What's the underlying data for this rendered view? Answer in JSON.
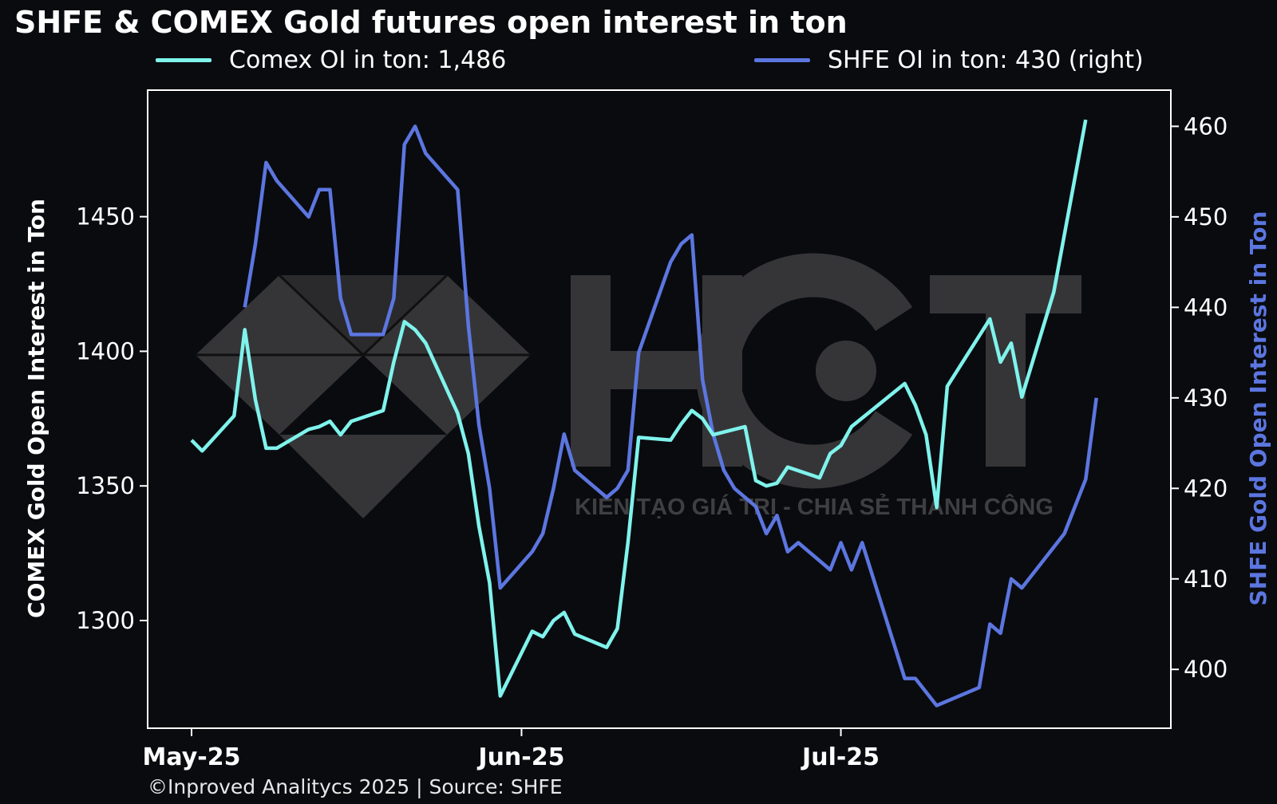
{
  "chart_data": {
    "type": "line",
    "title": "SHFE & COMEX Gold futures open interest in ton",
    "legend": {
      "placement": "top"
    },
    "x_ticks": [
      "May-25",
      "Jun-25",
      "Jul-25"
    ],
    "x_range": [
      "2025-05-01",
      "2025-07-29"
    ],
    "y_left": {
      "label": "COMEX Gold Open Interest in Ton",
      "range": [
        1260,
        1497
      ],
      "ticks": [
        1300,
        1350,
        1400,
        1450
      ]
    },
    "y_right": {
      "label": "SHFE Gold Open Interest in Ton",
      "range": [
        393.5,
        464
      ],
      "ticks": [
        400,
        410,
        420,
        430,
        440,
        450,
        460
      ]
    },
    "grid": false,
    "series": [
      {
        "name": "Comex OI in ton: 1,486",
        "axis": "left",
        "color": "#7ff3ec",
        "points": [
          [
            "2025-05-01",
            1367
          ],
          [
            "2025-05-02",
            1363
          ],
          [
            "2025-05-05",
            1376
          ],
          [
            "2025-05-06",
            1408
          ],
          [
            "2025-05-07",
            1382
          ],
          [
            "2025-05-08",
            1364
          ],
          [
            "2025-05-09",
            1364
          ],
          [
            "2025-05-12",
            1371
          ],
          [
            "2025-05-13",
            1372
          ],
          [
            "2025-05-14",
            1374
          ],
          [
            "2025-05-15",
            1369
          ],
          [
            "2025-05-16",
            1374
          ],
          [
            "2025-05-19",
            1378
          ],
          [
            "2025-05-20",
            1396
          ],
          [
            "2025-05-21",
            1411
          ],
          [
            "2025-05-22",
            1408
          ],
          [
            "2025-05-23",
            1403
          ],
          [
            "2025-05-26",
            1377
          ],
          [
            "2025-05-27",
            1362
          ],
          [
            "2025-05-28",
            1335
          ],
          [
            "2025-05-29",
            1314
          ],
          [
            "2025-05-30",
            1272
          ],
          [
            "2025-06-02",
            1296
          ],
          [
            "2025-06-03",
            1294
          ],
          [
            "2025-06-04",
            1300
          ],
          [
            "2025-06-05",
            1303
          ],
          [
            "2025-06-06",
            1295
          ],
          [
            "2025-06-09",
            1290
          ],
          [
            "2025-06-10",
            1297
          ],
          [
            "2025-06-11",
            1329
          ],
          [
            "2025-06-12",
            1368
          ],
          [
            "2025-06-15",
            1367
          ],
          [
            "2025-06-16",
            1373
          ],
          [
            "2025-06-17",
            1378
          ],
          [
            "2025-06-18",
            1375
          ],
          [
            "2025-06-19",
            1369
          ],
          [
            "2025-06-22",
            1372
          ],
          [
            "2025-06-23",
            1352
          ],
          [
            "2025-06-24",
            1350
          ],
          [
            "2025-06-25",
            1351
          ],
          [
            "2025-06-26",
            1357
          ],
          [
            "2025-06-29",
            1353
          ],
          [
            "2025-06-30",
            1362
          ],
          [
            "2025-07-01",
            1365
          ],
          [
            "2025-07-02",
            1372
          ],
          [
            "2025-07-07",
            1388
          ],
          [
            "2025-07-08",
            1380
          ],
          [
            "2025-07-09",
            1369
          ],
          [
            "2025-07-10",
            1342
          ],
          [
            "2025-07-11",
            1387
          ],
          [
            "2025-07-15",
            1412
          ],
          [
            "2025-07-16",
            1396
          ],
          [
            "2025-07-17",
            1403
          ],
          [
            "2025-07-18",
            1383
          ],
          [
            "2025-07-21",
            1422
          ],
          [
            "2025-07-24",
            1486
          ]
        ]
      },
      {
        "name": "SHFE OI in ton: 430 (right)",
        "axis": "right",
        "color": "#5c76e0",
        "points": [
          [
            "2025-05-06",
            440
          ],
          [
            "2025-05-07",
            447
          ],
          [
            "2025-05-08",
            456
          ],
          [
            "2025-05-09",
            454
          ],
          [
            "2025-05-12",
            450
          ],
          [
            "2025-05-13",
            453
          ],
          [
            "2025-05-14",
            453
          ],
          [
            "2025-05-15",
            441
          ],
          [
            "2025-05-16",
            437
          ],
          [
            "2025-05-19",
            437
          ],
          [
            "2025-05-20",
            441
          ],
          [
            "2025-05-21",
            458
          ],
          [
            "2025-05-22",
            460
          ],
          [
            "2025-05-23",
            457
          ],
          [
            "2025-05-26",
            453
          ],
          [
            "2025-05-27",
            438
          ],
          [
            "2025-05-28",
            427
          ],
          [
            "2025-05-29",
            420
          ],
          [
            "2025-05-30",
            409
          ],
          [
            "2025-06-02",
            413
          ],
          [
            "2025-06-03",
            415
          ],
          [
            "2025-06-04",
            420
          ],
          [
            "2025-06-05",
            426
          ],
          [
            "2025-06-06",
            422
          ],
          [
            "2025-06-09",
            419
          ],
          [
            "2025-06-10",
            420
          ],
          [
            "2025-06-11",
            422
          ],
          [
            "2025-06-12",
            435
          ],
          [
            "2025-06-15",
            445
          ],
          [
            "2025-06-16",
            447
          ],
          [
            "2025-06-17",
            448
          ],
          [
            "2025-06-18",
            432
          ],
          [
            "2025-06-19",
            426
          ],
          [
            "2025-06-20",
            422
          ],
          [
            "2025-06-21",
            420
          ],
          [
            "2025-06-23",
            418
          ],
          [
            "2025-06-24",
            415
          ],
          [
            "2025-06-25",
            417
          ],
          [
            "2025-06-26",
            413
          ],
          [
            "2025-06-27",
            414
          ],
          [
            "2025-06-30",
            411
          ],
          [
            "2025-07-01",
            414
          ],
          [
            "2025-07-02",
            411
          ],
          [
            "2025-07-03",
            414
          ],
          [
            "2025-07-07",
            399
          ],
          [
            "2025-07-08",
            399
          ],
          [
            "2025-07-10",
            396
          ],
          [
            "2025-07-14",
            398
          ],
          [
            "2025-07-15",
            405
          ],
          [
            "2025-07-16",
            404
          ],
          [
            "2025-07-17",
            410
          ],
          [
            "2025-07-18",
            409
          ],
          [
            "2025-07-22",
            415
          ],
          [
            "2025-07-24",
            421
          ],
          [
            "2025-07-25",
            430
          ]
        ]
      }
    ]
  },
  "watermark": {
    "brand": "HCT",
    "tagline": "KIẾN TẠO GIÁ TRỊ - CHIA SẺ THÀNH CÔNG"
  },
  "footer": "©Inproved Analitycs 2025 | Source: SHFE"
}
